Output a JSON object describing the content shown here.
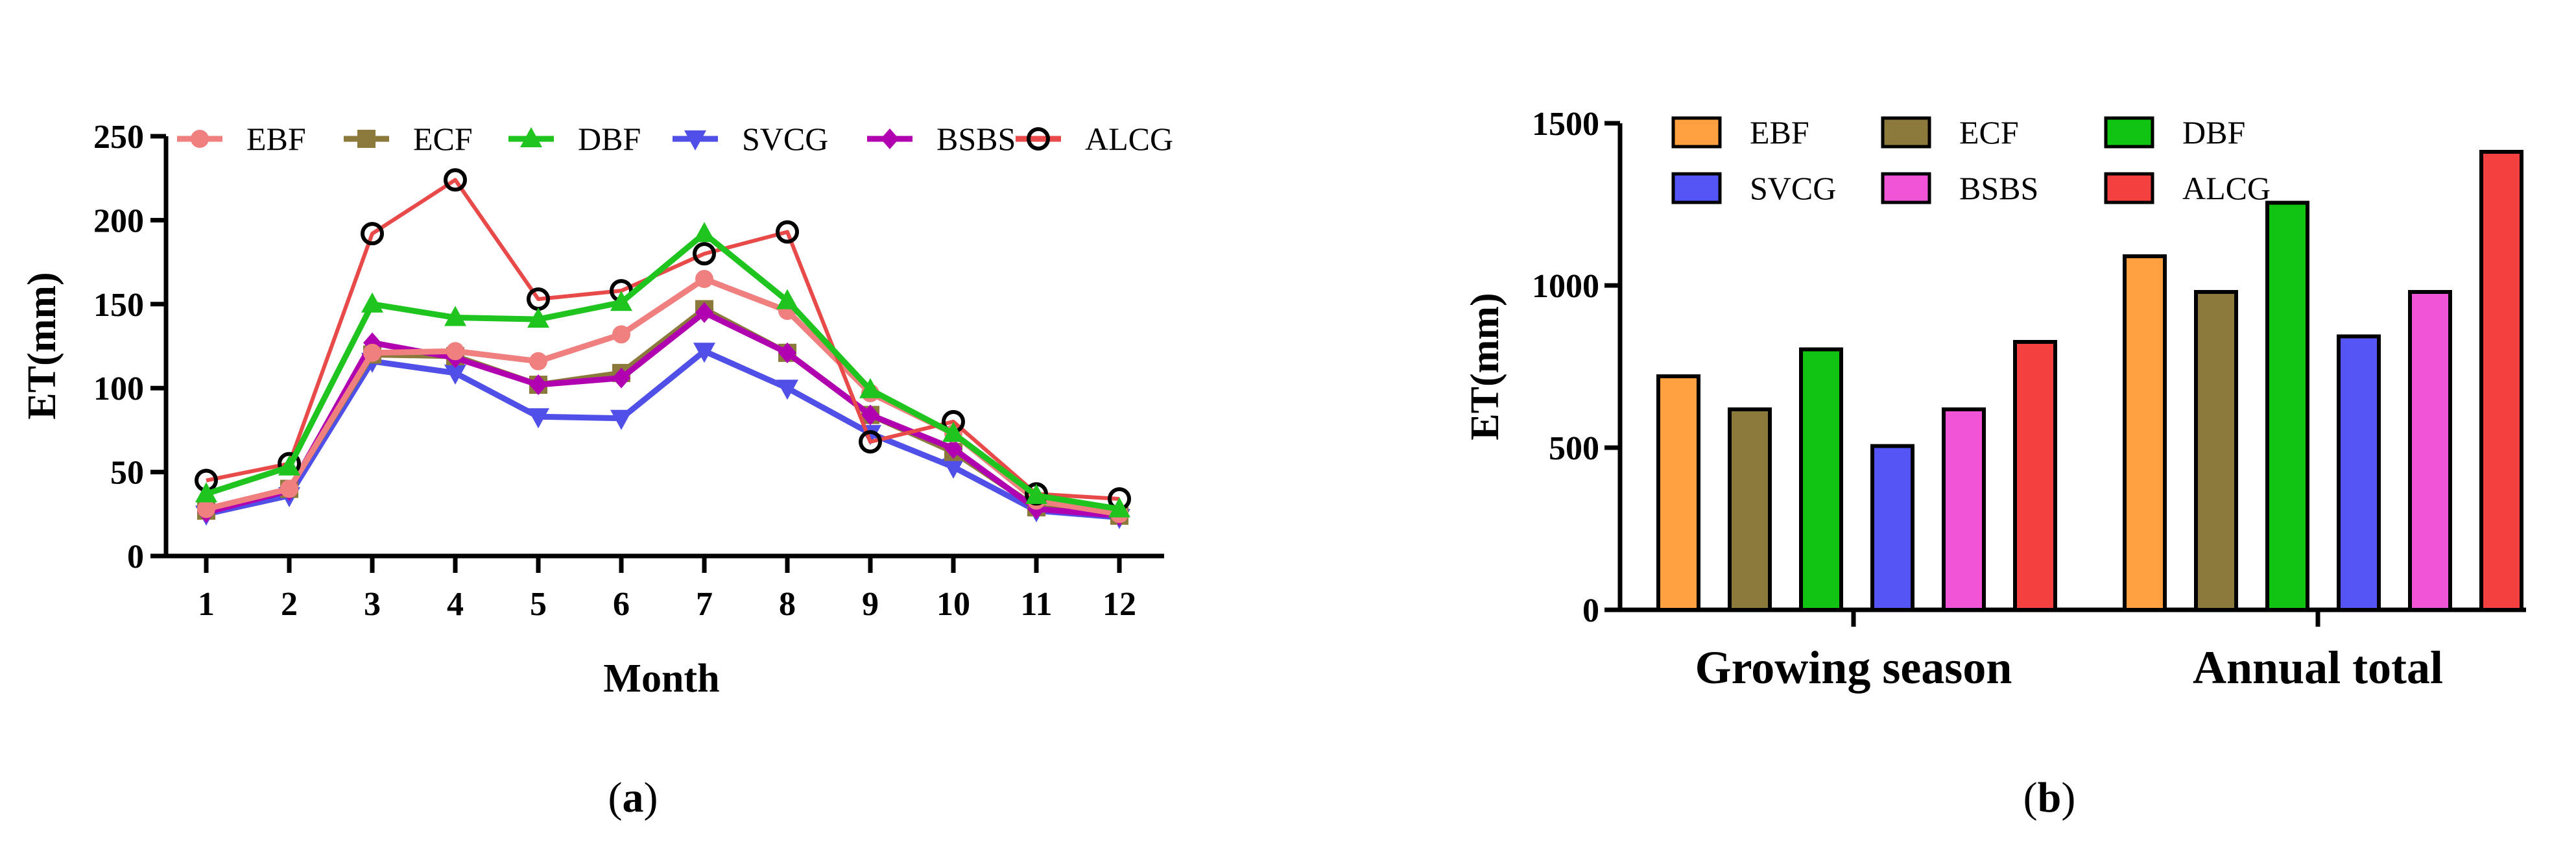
{
  "chart_data": [
    {
      "type": "line",
      "panel": "a",
      "panel_label": "a",
      "xlabel": "Month",
      "ylabel": "ET(mm)",
      "ylim": [
        0,
        250
      ],
      "yticks": [
        0,
        50,
        100,
        150,
        200,
        250
      ],
      "x": [
        1,
        2,
        3,
        4,
        5,
        6,
        7,
        8,
        9,
        10,
        11,
        12
      ],
      "legend_position": "top",
      "series": [
        {
          "name": "EBF",
          "color": "#f08080",
          "marker": "circle",
          "values": [
            28,
            40,
            121,
            122,
            116,
            132,
            165,
            146,
            97,
            73,
            33,
            25
          ]
        },
        {
          "name": "ECF",
          "color": "#8b7a3c",
          "marker": "square",
          "values": [
            27,
            40,
            120,
            119,
            102,
            109,
            147,
            121,
            84,
            62,
            29,
            24
          ]
        },
        {
          "name": "DBF",
          "color": "#1fc41f",
          "marker": "triangle-up",
          "values": [
            37,
            53,
            150,
            142,
            141,
            151,
            192,
            152,
            99,
            73,
            36,
            28
          ]
        },
        {
          "name": "SVCG",
          "color": "#5050e8",
          "marker": "triangle-down",
          "values": [
            25,
            36,
            116,
            109,
            83,
            82,
            122,
            100,
            73,
            53,
            27,
            23
          ]
        },
        {
          "name": "BSBS",
          "color": "#b000b0",
          "marker": "diamond",
          "values": [
            26,
            39,
            127,
            118,
            102,
            106,
            145,
            121,
            84,
            64,
            28,
            24
          ]
        },
        {
          "name": "ALCG",
          "color": "#e84a4a",
          "marker": "open-circle",
          "values": [
            45,
            55,
            192,
            224,
            153,
            158,
            180,
            193,
            68,
            80,
            37,
            34
          ]
        }
      ]
    },
    {
      "type": "bar",
      "panel": "b",
      "panel_label": "b",
      "ylabel": "ET(mm)",
      "ylim": [
        0,
        1500
      ],
      "yticks": [
        0,
        500,
        1000,
        1500
      ],
      "categories": [
        "Growing season",
        "Annual total"
      ],
      "legend_position": "top-left",
      "series": [
        {
          "name": "EBF",
          "color": "#ffa040",
          "values": [
            720,
            1090
          ]
        },
        {
          "name": "ECF",
          "color": "#8b7a3c",
          "values": [
            618,
            980
          ]
        },
        {
          "name": "DBF",
          "color": "#11c411",
          "values": [
            803,
            1255
          ]
        },
        {
          "name": "SVCG",
          "color": "#5555f5",
          "values": [
            505,
            843
          ]
        },
        {
          "name": "BSBS",
          "color": "#f055d8",
          "values": [
            618,
            980
          ]
        },
        {
          "name": "ALCG",
          "color": "#f54040",
          "values": [
            826,
            1412
          ]
        }
      ]
    }
  ]
}
